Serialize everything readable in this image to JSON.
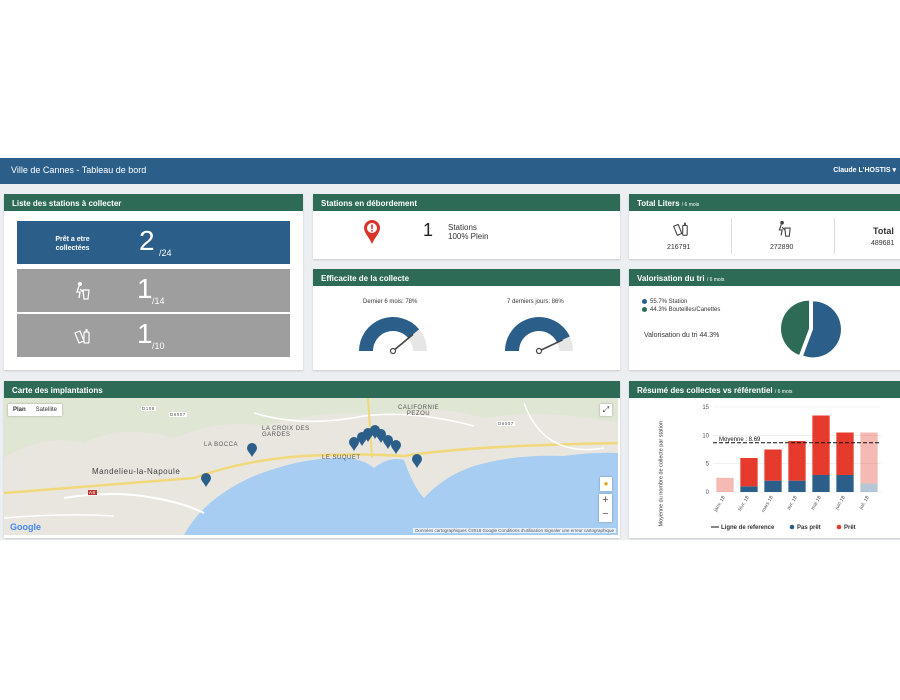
{
  "nav": {
    "title": "Ville de Cannes - Tableau de bord",
    "user": "Claude L'HOSTIS"
  },
  "stations_panel": {
    "title": "Liste des stations à collecter",
    "ready_tile": {
      "label": "Prêt a etre collectées",
      "value": "2",
      "total": "/24"
    },
    "waste_tile": {
      "icon": "trash-icon",
      "value": "1",
      "total": "/14"
    },
    "bottle_tile": {
      "icon": "bottles-icon",
      "value": "1",
      "total": "/10"
    }
  },
  "overflow_panel": {
    "title": "Stations en débordement",
    "count": "1",
    "label1": "Stations",
    "label2": "100% Plein",
    "icon": "alert-marker-icon"
  },
  "total_panel": {
    "title": "Total Liters",
    "subtitle": "/ 6 mois",
    "bottles_value": "216791",
    "trash_value": "272890",
    "total_label": "Total",
    "total_value": "489681"
  },
  "efficiency_panel": {
    "title": "Efficacite de la collecte",
    "gauge1_label": "Dernier 6 mois: 78%",
    "gauge1_value": 78,
    "gauge2_label": "7 derniers jours: 86%",
    "gauge2_value": 86
  },
  "valorisation_panel": {
    "title": "Valorisation du tri",
    "subtitle": "/ 6 mois",
    "legend": [
      {
        "label": "55.7% Station",
        "color": "#2b5f8a"
      },
      {
        "label": "44.3% Bouteilles/Canettes",
        "color": "#2e6b57"
      }
    ],
    "note": "Valorisation du tri 44.3%",
    "slices": [
      55.7,
      44.3
    ]
  },
  "map_panel": {
    "title": "Carte des implantations",
    "map_type_plan": "Plan",
    "map_type_satellite": "Satellite",
    "places": [
      "Mandelieu-la-Napoule",
      "LA BOCCA",
      "LA CROIX DES GARDES",
      "LE SUQUET",
      "CALIFORNIE PEZOU"
    ],
    "roads": [
      "D109",
      "D6007",
      "D6007",
      "A8",
      "D6007"
    ],
    "google": "Google",
    "attribution": "Données cartographiques ©2018 Google    Conditions d'utilisation    Signaler une erreur cartographique",
    "zoom_in": "+",
    "zoom_out": "−"
  },
  "summary_panel": {
    "title": "Résumé des collectes vs référentiel",
    "subtitle": "/ 6 mois"
  },
  "chart_data": {
    "type": "bar",
    "stacked": true,
    "categories": [
      "janv. 18",
      "févr. 18",
      "mars 18",
      "avr. 18",
      "mai 18",
      "juin 18",
      "juil. 18"
    ],
    "series": [
      {
        "name": "Pas prêt",
        "values": [
          0,
          1,
          2,
          2,
          3,
          3,
          1.5
        ],
        "color": "#2b5f8a"
      },
      {
        "name": "Prêt",
        "values": [
          2.5,
          5,
          5.5,
          7,
          10.5,
          7.5,
          9
        ],
        "color": "#e53a2c"
      }
    ],
    "faded_categories": [
      "janv. 18",
      "juil. 18"
    ],
    "reference_line": {
      "name": "Ligne de reference",
      "value": 8.69,
      "label": "Moyenne : 8.69"
    },
    "ylabel": "Moyenne du nombre de collecte par station",
    "ylim": [
      0,
      15
    ],
    "yticks": [
      0,
      5,
      10,
      15
    ]
  }
}
